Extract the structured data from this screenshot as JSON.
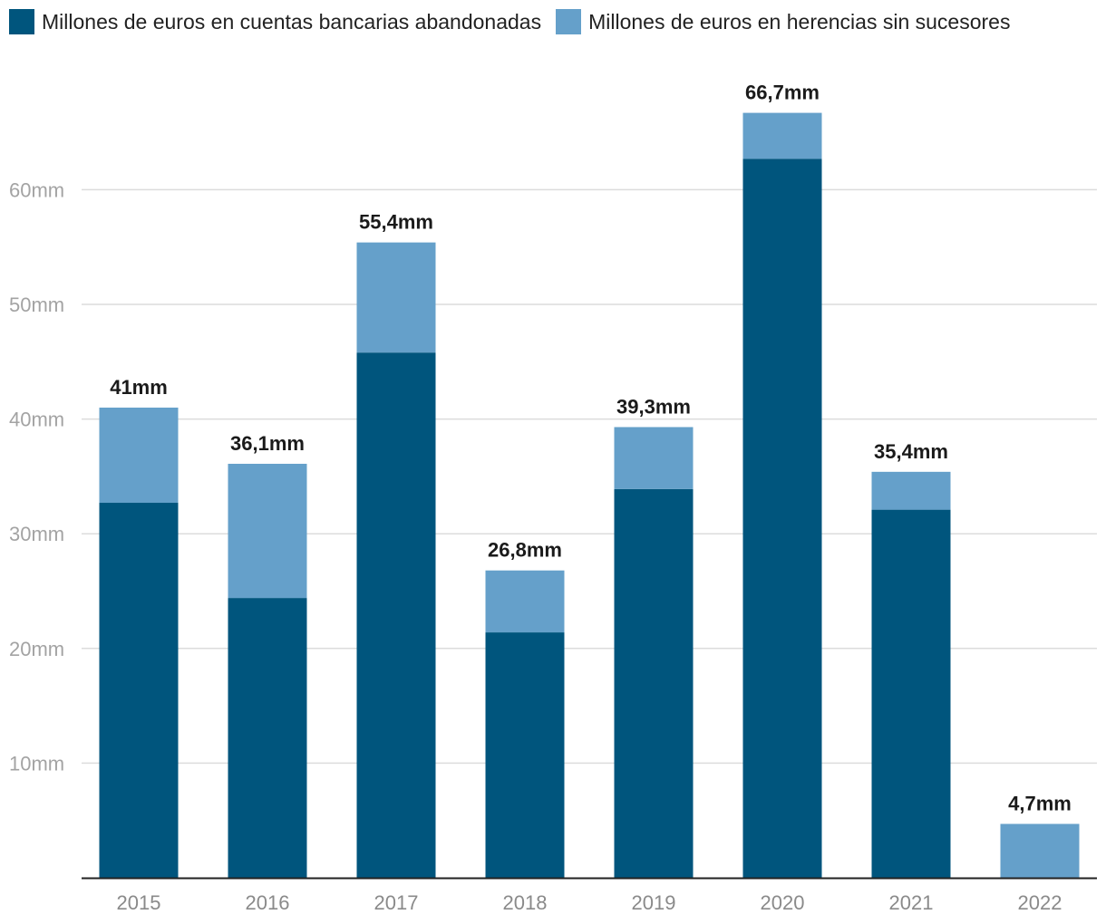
{
  "chart_data": {
    "type": "bar",
    "stacked": true,
    "categories": [
      "2015",
      "2016",
      "2017",
      "2018",
      "2019",
      "2020",
      "2021",
      "2022"
    ],
    "series": [
      {
        "name": "Millones de euros en cuentas bancarias abandonadas",
        "color": "#00557d",
        "values": [
          32.7,
          24.4,
          45.8,
          21.4,
          33.9,
          62.7,
          32.1,
          0
        ]
      },
      {
        "name": "Millones de euros en herencias sin sucesores",
        "color": "#65a0ca",
        "values": [
          8.3,
          11.7,
          9.6,
          5.4,
          5.4,
          4.0,
          3.3,
          4.7
        ]
      }
    ],
    "total_labels": [
      "41mm",
      "36,1mm",
      "55,4mm",
      "26,8mm",
      "39,3mm",
      "66,7mm",
      "35,4mm",
      "4,7mm"
    ],
    "y_ticks": [
      10,
      20,
      30,
      40,
      50,
      60
    ],
    "y_tick_labels": [
      "10mm",
      "20mm",
      "30mm",
      "40mm",
      "50mm",
      "60mm"
    ],
    "ylim": [
      0,
      75
    ],
    "grid": true,
    "legend_position": "top-left",
    "title": "",
    "xlabel": "",
    "ylabel": ""
  }
}
